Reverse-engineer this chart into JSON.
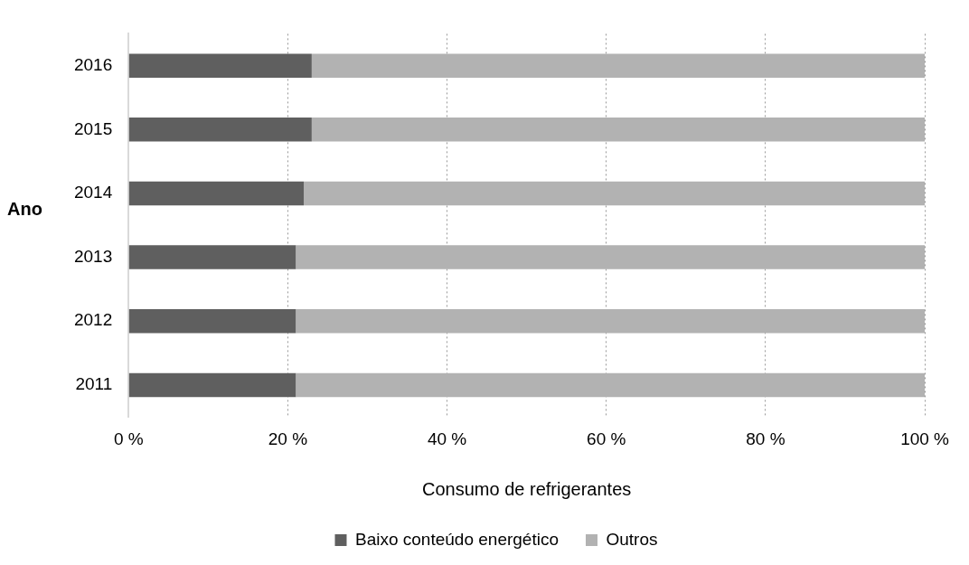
{
  "chart_data": {
    "type": "bar",
    "orientation": "horizontal",
    "stacked": true,
    "xlabel": "Consumo de refrigerantes",
    "ylabel": "Ano",
    "categories": [
      "2016",
      "2015",
      "2014",
      "2013",
      "2012",
      "2011"
    ],
    "series": [
      {
        "name": "Baixo conteúdo energético",
        "color": "#5f5f5f",
        "values": [
          23,
          23,
          22,
          21,
          21,
          21
        ]
      },
      {
        "name": "Outros",
        "color": "#b2b2b2",
        "values": [
          77,
          77,
          78,
          79,
          79,
          79
        ]
      }
    ],
    "xlim": [
      0,
      100
    ],
    "xticks": [
      {
        "value": 0,
        "label": "0 %"
      },
      {
        "value": 20,
        "label": "20 %"
      },
      {
        "value": 40,
        "label": "40 %"
      },
      {
        "value": 60,
        "label": "60 %"
      },
      {
        "value": 80,
        "label": "80 %"
      },
      {
        "value": 100,
        "label": "100 %"
      }
    ],
    "grid": "x",
    "legend": "bottom"
  }
}
